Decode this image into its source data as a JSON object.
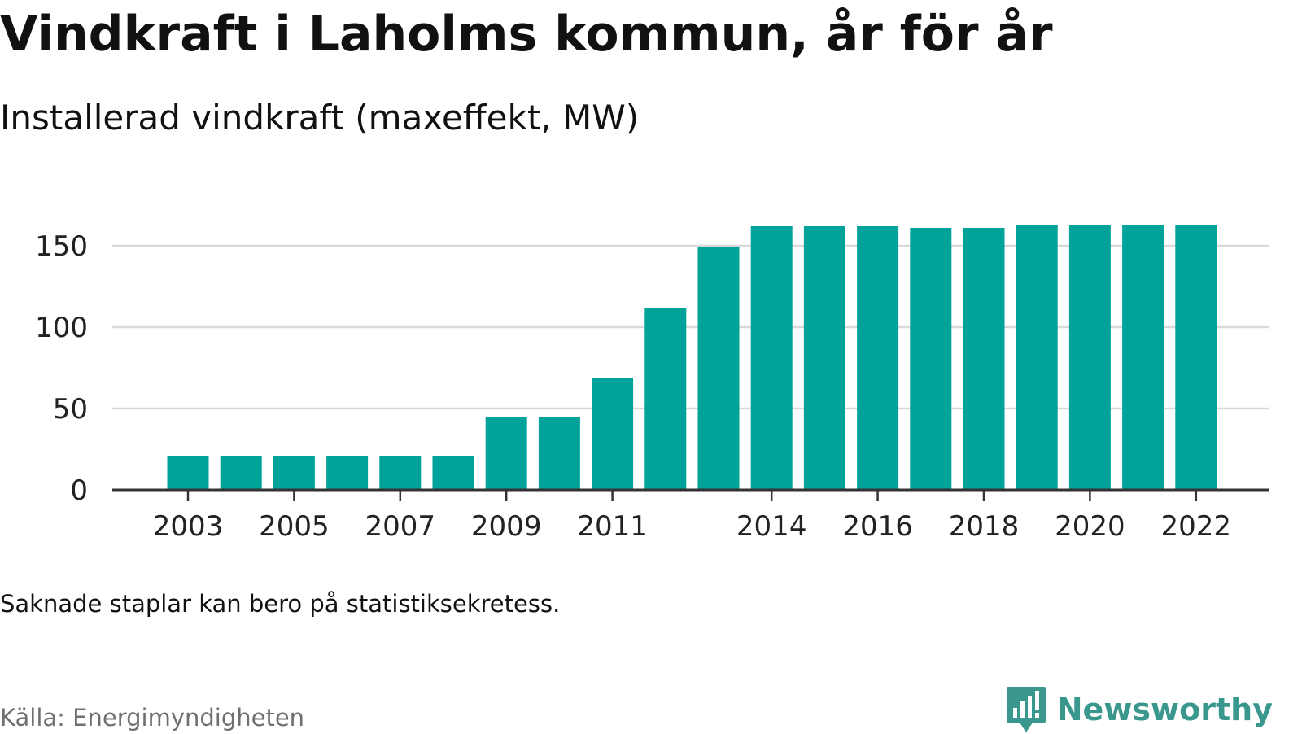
{
  "header": {
    "title": "Vindkraft i Laholms kommun, år för år",
    "subtitle": "Installerad vindkraft (maxeffekt, MW)"
  },
  "footer": {
    "note": "Saknade staplar kan bero på statistiksekretess.",
    "source": "Källa: Energimyndigheten",
    "brand": "Newsworthy"
  },
  "colors": {
    "bar": "#00A39A",
    "grid": "#D9D9D9",
    "axis": "#333333",
    "text": "#111111",
    "source": "#6F6F6F",
    "brand": "#3A978E"
  },
  "chart_data": {
    "type": "bar",
    "title": "Vindkraft i Laholms kommun, år för år",
    "subtitle": "Installerad vindkraft (maxeffekt, MW)",
    "xlabel": "",
    "ylabel": "",
    "categories": [
      "2003",
      "2004",
      "2005",
      "2006",
      "2007",
      "2008",
      "2009",
      "2010",
      "2011",
      "2012",
      "2013",
      "2014",
      "2015",
      "2016",
      "2017",
      "2018",
      "2019",
      "2020",
      "2021",
      "2022"
    ],
    "values": [
      21,
      21,
      21,
      21,
      21,
      21,
      45,
      45,
      69,
      112,
      149,
      162,
      162,
      162,
      161,
      161,
      163,
      163,
      163,
      163
    ],
    "x_tick_labels": [
      "2003",
      "2005",
      "2007",
      "2009",
      "2011",
      "2014",
      "2016",
      "2018",
      "2020",
      "2022"
    ],
    "y_ticks": [
      0,
      50,
      100,
      150
    ],
    "ylim": [
      0,
      170
    ],
    "grid": true,
    "legend": "none"
  }
}
